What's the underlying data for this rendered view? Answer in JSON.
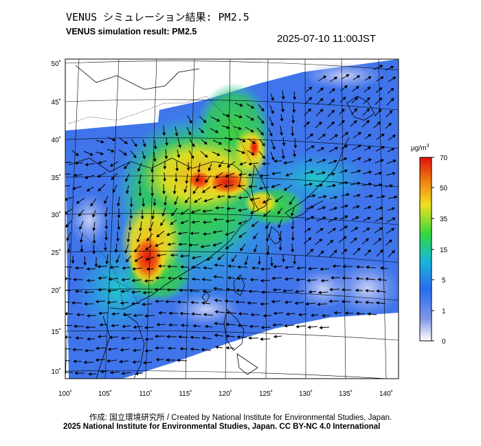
{
  "title_jp": "VENUS シミュレーション結果: PM2.5",
  "title_en": "VENUS simulation result: PM2.5",
  "timestamp": "2025-07-10 11:00JST",
  "axes": {
    "lon_labels": [
      "100˚",
      "105˚",
      "110˚",
      "115˚",
      "120˚",
      "125˚",
      "130˚",
      "135˚",
      "140˚"
    ],
    "lat_labels": [
      "50˚",
      "45˚",
      "40˚",
      "35˚",
      "30˚",
      "25˚",
      "20˚",
      "15˚",
      "10˚"
    ]
  },
  "colorbar": {
    "unit": "μg/m",
    "unit_sup": "3",
    "ticks": [
      "70",
      "50",
      "35",
      "15",
      "5",
      "1",
      "0"
    ],
    "colors": [
      "#ffffff",
      "#6f8fe8",
      "#2a6cf0",
      "#18c0d0",
      "#30d840",
      "#f0e020",
      "#f08010",
      "#e01010"
    ]
  },
  "footer": {
    "credit": "作成: 国立環境研究所 / Created by National Institute for Environmental Studies, Japan.",
    "copyright": "2025 National Institute for Environmental Studies, Japan. CC BY-NC 4.0 International"
  }
}
